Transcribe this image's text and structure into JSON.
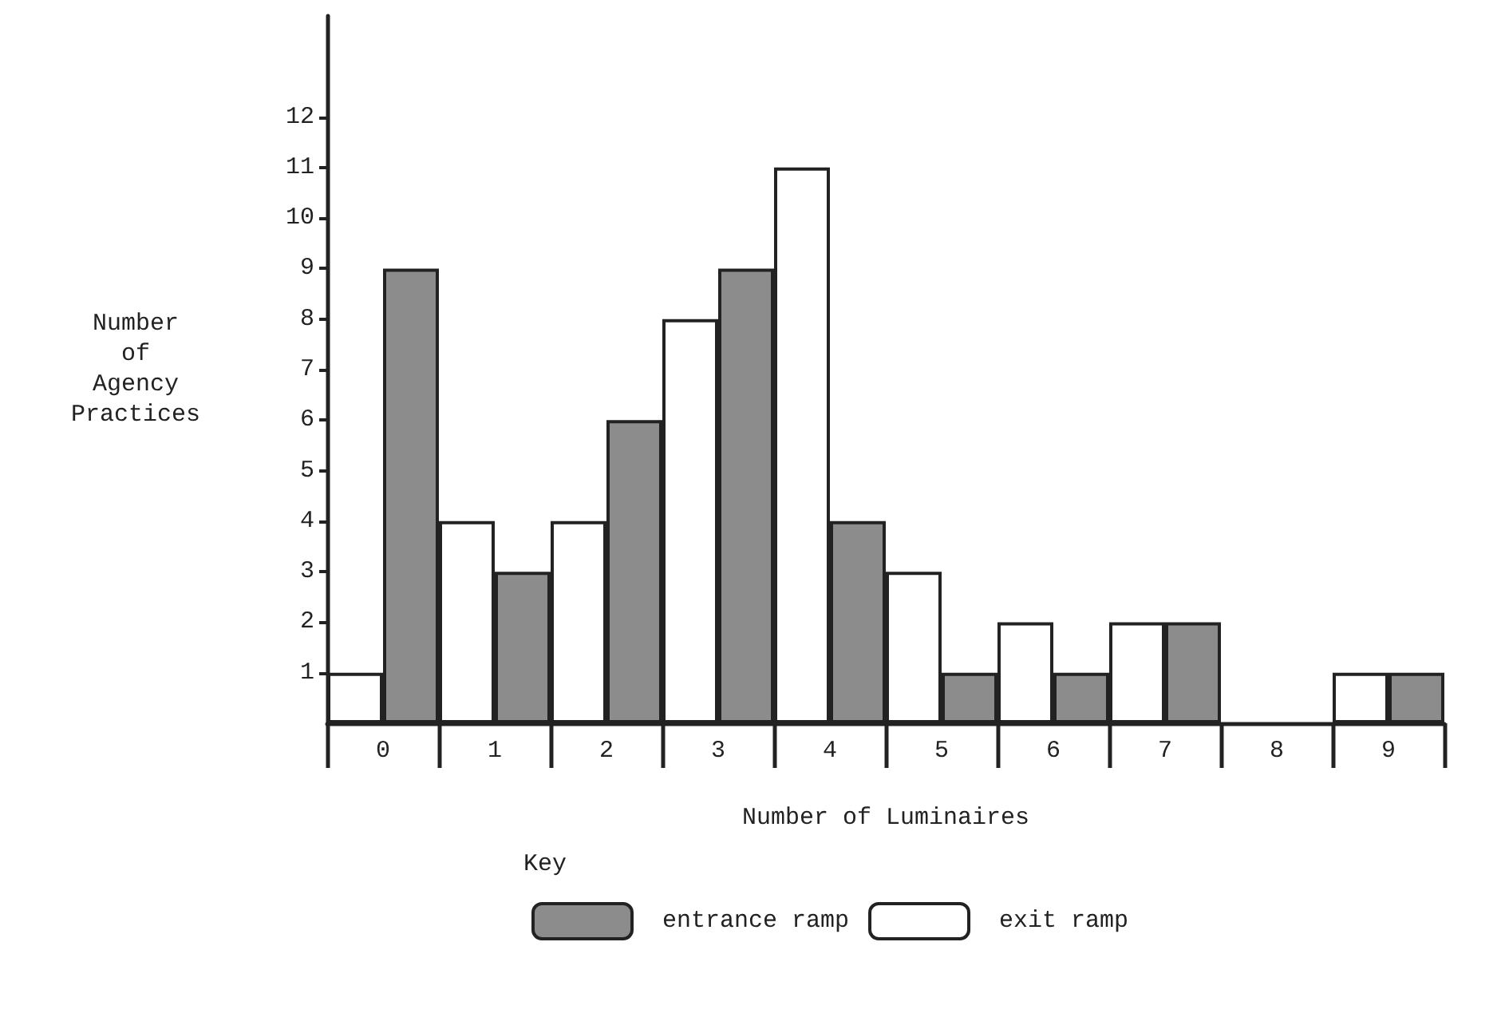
{
  "chart_data": {
    "type": "bar",
    "xlabel": "Number of Luminaires",
    "ylabel": "Number of Agency Practices",
    "legend_title": "Key",
    "categories": [
      "0",
      "1",
      "2",
      "3",
      "4",
      "5",
      "6",
      "7",
      "8",
      "9"
    ],
    "series": [
      {
        "name": "exit ramp",
        "color": "#ffffff",
        "values": [
          1,
          4,
          4,
          8,
          11,
          3,
          2,
          2,
          0,
          1
        ]
      },
      {
        "name": "entrance ramp",
        "color": "#8c8c8c",
        "values": [
          9,
          3,
          6,
          9,
          4,
          1,
          1,
          2,
          0,
          1
        ]
      }
    ],
    "ylim": [
      0,
      14
    ],
    "yticks": [
      1,
      2,
      3,
      4,
      5,
      6,
      7,
      8,
      9,
      10,
      11,
      12
    ],
    "grid": false,
    "legend": "bottom"
  }
}
